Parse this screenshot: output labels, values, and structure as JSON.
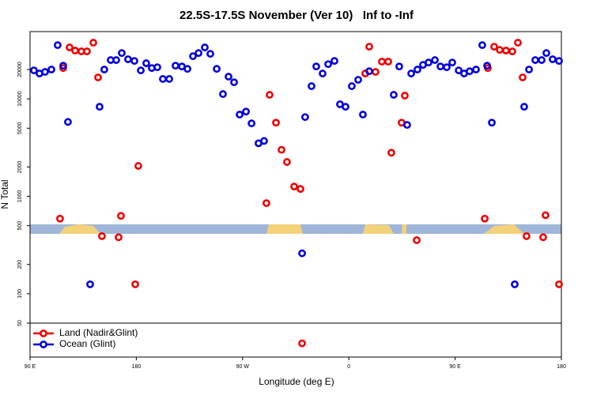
{
  "chart_data": {
    "type": "scatter",
    "title": "22.5S-17.5S November (Ver 10)   Inf to -Inf",
    "x_label": "Longitude (deg E)",
    "y_label": "N Total",
    "xlim": [
      90,
      540
    ],
    "xticks": [
      {
        "value": 90,
        "label": "90 E"
      },
      180,
      {
        "value": 270,
        "label": "90 W"
      },
      {
        "value": 360,
        "label": "0"
      },
      {
        "value": 450,
        "label": "90 E"
      },
      {
        "value": 540,
        "label": "180"
      }
    ],
    "ylim": [
      22.4,
      49000
    ],
    "y_log": true,
    "yticks": [
      50,
      100,
      200,
      500,
      1000,
      2000,
      5000,
      10000,
      20000
    ],
    "legend": "bottom left",
    "series": [
      {
        "name": "Land (Nadir&Glint)",
        "color": "#ee0000",
        "x": [
          115.4,
          118.1,
          123.5,
          128.2,
          133.5,
          138.2,
          143.6,
          147.6,
          150.9,
          165,
          167,
          179.1,
          181.7,
          290.2,
          292.9,
          298.3,
          303,
          307.6,
          313.7,
          319,
          320.4,
          377.3,
          373.9,
          382.6,
          388,
          393.4,
          396,
          404.7,
          407.4,
          417.5,
          475.1,
          477.7,
          483.1,
          487.8,
          493.1,
          498.5,
          503.2,
          507.2,
          510.5,
          524.6,
          526.6,
          538
        ],
        "values": [
          590,
          20700,
          33700,
          31300,
          30700,
          30700,
          37700,
          16600,
          390,
          380,
          630,
          125,
          2050,
          850,
          11000,
          5700,
          3000,
          2250,
          1260,
          1190,
          31,
          34300,
          18200,
          18900,
          24100,
          24100,
          2800,
          5700,
          10800,
          355,
          590,
          20700,
          34300,
          31800,
          31300,
          30700,
          37700,
          16600,
          390,
          380,
          640,
          125
        ]
      },
      {
        "name": "Ocean (Glint)",
        "color": "#0000dd",
        "x": [
          93.3,
          98,
          102.7,
          108.1,
          113.4,
          118.1,
          122.1,
          140.9,
          148.9,
          152.9,
          158.3,
          163,
          167.7,
          173,
          178.4,
          183.8,
          188.4,
          193.1,
          197.8,
          202.5,
          207.9,
          213.2,
          218.6,
          223.3,
          228,
          232.7,
          238,
          242.7,
          248.1,
          253.4,
          258.1,
          262.8,
          267.5,
          272.9,
          277.6,
          283.5,
          288.2,
          320.4,
          323,
          328.4,
          332.4,
          337.8,
          342.5,
          347.8,
          352.5,
          357.2,
          362.5,
          367.9,
          371.9,
          377.3,
          398,
          402.7,
          409.4,
          412.8,
          418.1,
          422.8,
          427.5,
          432.9,
          437.6,
          442.9,
          447.6,
          453,
          457.6,
          462.3,
          467.7,
          473,
          477.1,
          481.1,
          500.5,
          508.5,
          512.6,
          517.9,
          523.3,
          527.3,
          532.6,
          538
        ],
        "values": [
          19600,
          18200,
          18900,
          20000,
          35600,
          21900,
          5800,
          125,
          8300,
          20000,
          25000,
          25000,
          29500,
          25500,
          24500,
          19600,
          23200,
          20700,
          21100,
          16000,
          16000,
          21900,
          21500,
          20300,
          27400,
          29500,
          33700,
          29000,
          20300,
          11200,
          16900,
          14800,
          6900,
          7400,
          5600,
          3500,
          3700,
          260,
          6500,
          13500,
          21500,
          18200,
          22700,
          24500,
          8800,
          8300,
          13500,
          15700,
          6900,
          19200,
          11000,
          21500,
          5400,
          18200,
          20000,
          22300,
          23600,
          25000,
          21500,
          21100,
          23600,
          19600,
          18200,
          19200,
          20000,
          35600,
          21900,
          5700,
          125,
          8300,
          20000,
          25000,
          25000,
          29500,
          25500,
          24500
        ]
      }
    ]
  }
}
